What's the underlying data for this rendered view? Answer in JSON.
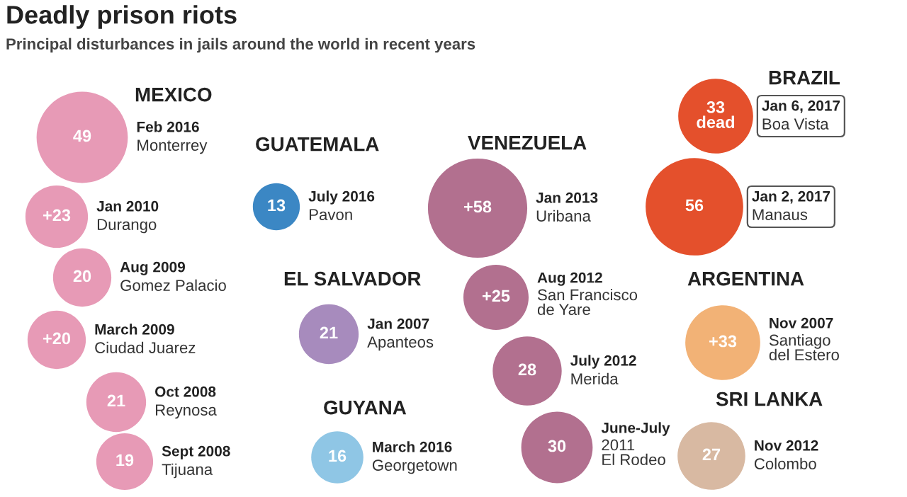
{
  "chart_data": [
    {
      "type": "other",
      "title": "Deadly prison riots",
      "subtitle": "Principal disturbances in jails around the world in recent years"
    },
    {
      "type": "other",
      "title": "MEXICO",
      "colors": [
        "#e79ab6",
        "#e79ab6",
        "#e79ab6",
        "#e79ab6",
        "#e79ab6",
        "#e79ab6"
      ],
      "values": [
        49,
        23,
        20,
        20,
        21,
        19
      ],
      "value_labels": [
        "49",
        "+23",
        "20",
        "+20",
        "21",
        "19"
      ],
      "categories": [
        "Feb 2016\nMonterrey",
        "Jan 2010\nDurango",
        "Aug 2009\nGomez Palacio",
        "March 2009\nCiudad Juarez",
        "Oct 2008\nReynosa",
        "Sept 2008\nTijuana"
      ]
    },
    {
      "type": "other",
      "title": "GUATEMALA",
      "colors": [
        "#3b87c4"
      ],
      "values": [
        13
      ],
      "value_labels": [
        "13"
      ],
      "categories": [
        "July 2016\nPavon"
      ]
    },
    {
      "type": "other",
      "title": "EL SALVADOR",
      "colors": [
        "#a78bbd"
      ],
      "values": [
        21
      ],
      "value_labels": [
        "21"
      ],
      "categories": [
        "Jan 2007\nApanteos"
      ]
    },
    {
      "type": "other",
      "title": "GUYANA",
      "colors": [
        "#8fc6e5"
      ],
      "values": [
        16
      ],
      "value_labels": [
        "16"
      ],
      "categories": [
        "March 2016\nGeorgetown"
      ]
    },
    {
      "type": "other",
      "title": "VENEZUELA",
      "colors": [
        "#b2708f",
        "#b2708f",
        "#b2708f",
        "#b2708f"
      ],
      "values": [
        58,
        25,
        28,
        30
      ],
      "value_labels": [
        "+58",
        "+25",
        "28",
        "30"
      ],
      "categories": [
        "Jan 2013\nUribana",
        "Aug 2012\nSan Francisco\nde Yare",
        "July 2012\nMerida",
        "June-July\n2011\nEl Rodeo"
      ]
    },
    {
      "type": "other",
      "title": "BRAZIL",
      "colors": [
        "#e4502c",
        "#e4502c"
      ],
      "values": [
        33,
        56
      ],
      "value_labels": [
        "33\ndead",
        "56"
      ],
      "categories": [
        "Jan 6, 2017\nBoa Vista",
        "Jan 2, 2017\nManaus"
      ]
    },
    {
      "type": "other",
      "title": "ARGENTINA",
      "colors": [
        "#f2b276"
      ],
      "values": [
        33
      ],
      "value_labels": [
        "+33"
      ],
      "categories": [
        "Nov 2007\nSantiago\ndel Estero"
      ]
    },
    {
      "type": "other",
      "title": "SRI LANKA",
      "colors": [
        "#d8b9a2"
      ],
      "values": [
        27
      ],
      "value_labels": [
        "27"
      ],
      "categories": [
        "Nov 2012\nColombo"
      ]
    }
  ]
}
